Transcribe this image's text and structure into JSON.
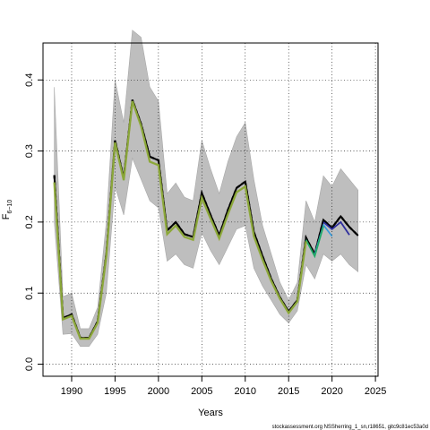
{
  "chart_data": {
    "type": "line",
    "xlabel": "Years",
    "ylabel": {
      "main": "F",
      "sub": "6−10"
    },
    "xlim": [
      1986.7,
      2025.3
    ],
    "ylim": [
      -0.017,
      0.452
    ],
    "x_ticks": [
      1990,
      1995,
      2000,
      2005,
      2010,
      2015,
      2020,
      2025
    ],
    "y_ticks": [
      0.0,
      0.1,
      0.2,
      0.3,
      0.4
    ],
    "y_tick_labels": [
      "0.0",
      "0.1",
      "0.2",
      "0.3",
      "0.4"
    ],
    "grid": true,
    "grid_style": "dotted",
    "colors": {
      "band": "#bebebe",
      "band_edge": "#a8a8a8",
      "main_line": "#000000",
      "series_blue": "#2e2e9e",
      "series_lightblue": "#3399dd",
      "series_green": "#22aa66",
      "series_olive": "#9aa832"
    },
    "confidence_band": {
      "x": [
        1988,
        1989,
        1990,
        1991,
        1992,
        1993,
        1994,
        1995,
        1996,
        1997,
        1998,
        1999,
        2000,
        2001,
        2002,
        2003,
        2004,
        2005,
        2006,
        2007,
        2008,
        2009,
        2010,
        2011,
        2012,
        2013,
        2014,
        2015,
        2016,
        2017,
        2018,
        2019,
        2020,
        2021,
        2022,
        2023
      ],
      "lower": [
        0.2,
        0.042,
        0.043,
        0.025,
        0.025,
        0.042,
        0.1,
        0.25,
        0.21,
        0.29,
        0.26,
        0.23,
        0.22,
        0.145,
        0.155,
        0.14,
        0.135,
        0.185,
        0.16,
        0.14,
        0.165,
        0.19,
        0.195,
        0.135,
        0.11,
        0.09,
        0.07,
        0.058,
        0.075,
        0.14,
        0.12,
        0.155,
        0.145,
        0.155,
        0.14,
        0.13
      ],
      "upper": [
        0.39,
        0.095,
        0.1,
        0.05,
        0.05,
        0.08,
        0.2,
        0.4,
        0.34,
        0.47,
        0.46,
        0.39,
        0.37,
        0.24,
        0.255,
        0.235,
        0.23,
        0.315,
        0.275,
        0.24,
        0.285,
        0.32,
        0.34,
        0.26,
        0.195,
        0.155,
        0.115,
        0.09,
        0.115,
        0.23,
        0.2,
        0.265,
        0.25,
        0.275,
        0.26,
        0.245
      ]
    },
    "series": [
      {
        "name": "",
        "style": "dashed",
        "x": [
          1988,
          1989,
          1990,
          1991,
          1992,
          1993,
          1994,
          1995,
          1996,
          1997,
          1998,
          1999,
          2000,
          2001,
          2002,
          2003,
          2004,
          2005,
          2006,
          2007,
          2008,
          2009,
          2010,
          2011,
          2012,
          2013,
          2014,
          2015,
          2016,
          2017,
          2018,
          2019,
          2020,
          2021,
          2022,
          2023
        ],
        "y": [
          0.266,
          0.065,
          0.07,
          0.037,
          0.037,
          0.06,
          0.155,
          0.315,
          0.262,
          0.372,
          0.338,
          0.292,
          0.287,
          0.188,
          0.2,
          0.183,
          0.179,
          0.241,
          0.21,
          0.181,
          0.217,
          0.248,
          0.257,
          0.186,
          0.152,
          0.12,
          0.094,
          0.074,
          0.09,
          0.178,
          0.155,
          0.203,
          0.192,
          0.208,
          0.193,
          0.181
        ]
      },
      {
        "name": "",
        "style": "solid",
        "x": [
          2019,
          2020,
          2021,
          2022
        ],
        "y": [
          0.2,
          0.19,
          0.2,
          0.182
        ]
      },
      {
        "name": "",
        "style": "solid",
        "x": [
          2018,
          2019,
          2020
        ],
        "y": [
          0.155,
          0.196,
          0.18
        ]
      },
      {
        "name": "",
        "style": "solid",
        "x": [
          2017,
          2018,
          2019
        ],
        "y": [
          0.175,
          0.152,
          0.194
        ]
      },
      {
        "name": "",
        "style": "solid",
        "x": [
          1988,
          1989,
          1990,
          1991,
          1992,
          1993,
          1994,
          1995,
          1996,
          1997,
          1998,
          1999,
          2000,
          2001,
          2002,
          2003,
          2004,
          2005,
          2006,
          2007,
          2008,
          2009,
          2010,
          2011,
          2012,
          2013,
          2014,
          2015,
          2016,
          2017
        ],
        "y": [
          0.256,
          0.063,
          0.068,
          0.036,
          0.036,
          0.058,
          0.152,
          0.312,
          0.259,
          0.37,
          0.335,
          0.285,
          0.28,
          0.183,
          0.195,
          0.179,
          0.175,
          0.234,
          0.205,
          0.177,
          0.211,
          0.242,
          0.25,
          0.18,
          0.147,
          0.117,
          0.092,
          0.072,
          0.088,
          0.173
        ]
      }
    ],
    "footer": "stockassessment.org NSSherring_1_sn,r18651, gitc9c81ec53a0d"
  }
}
